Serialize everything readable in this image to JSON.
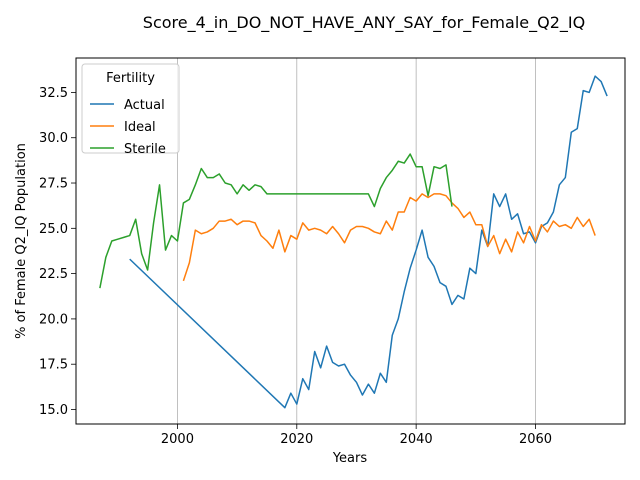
{
  "chart_data": {
    "type": "line",
    "title": "Score_4_in_DO_NOT_HAVE_ANY_SAY_for_Female_Q2_IQ",
    "xlabel": "Years",
    "ylabel": "% of Female Q2_IQ Population",
    "xlim": [
      1983,
      2075
    ],
    "ylim": [
      14.2,
      34.4
    ],
    "xticks": [
      2000,
      2020,
      2040,
      2060
    ],
    "yticks": [
      15.0,
      17.5,
      20.0,
      22.5,
      25.0,
      27.5,
      30.0,
      32.5
    ],
    "grid": "x-only",
    "legend": {
      "title": "Fertility",
      "position": "top-left"
    },
    "series": [
      {
        "name": "Actual",
        "color": "#1f77b4",
        "points": [
          [
            1992,
            23.3
          ],
          [
            2018,
            15.1
          ],
          [
            2019,
            15.9
          ],
          [
            2020,
            15.3
          ],
          [
            2021,
            16.7
          ],
          [
            2022,
            16.1
          ],
          [
            2023,
            18.2
          ],
          [
            2024,
            17.3
          ],
          [
            2025,
            18.5
          ],
          [
            2026,
            17.6
          ],
          [
            2027,
            17.4
          ],
          [
            2028,
            17.5
          ],
          [
            2029,
            16.9
          ],
          [
            2030,
            16.5
          ],
          [
            2031,
            15.8
          ],
          [
            2032,
            16.4
          ],
          [
            2033,
            15.9
          ],
          [
            2034,
            17.0
          ],
          [
            2035,
            16.5
          ],
          [
            2036,
            19.1
          ],
          [
            2037,
            20.0
          ],
          [
            2038,
            21.5
          ],
          [
            2039,
            22.8
          ],
          [
            2040,
            23.8
          ],
          [
            2041,
            24.9
          ],
          [
            2042,
            23.4
          ],
          [
            2043,
            22.9
          ],
          [
            2044,
            22.0
          ],
          [
            2045,
            21.8
          ],
          [
            2046,
            20.8
          ],
          [
            2047,
            21.3
          ],
          [
            2048,
            21.1
          ],
          [
            2049,
            22.8
          ],
          [
            2050,
            22.5
          ],
          [
            2051,
            24.9
          ],
          [
            2052,
            24.0
          ],
          [
            2053,
            26.9
          ],
          [
            2054,
            26.2
          ],
          [
            2055,
            26.9
          ],
          [
            2056,
            25.5
          ],
          [
            2057,
            25.8
          ],
          [
            2058,
            24.7
          ],
          [
            2059,
            24.8
          ],
          [
            2060,
            24.2
          ],
          [
            2061,
            25.1
          ],
          [
            2062,
            25.3
          ],
          [
            2063,
            25.9
          ],
          [
            2064,
            27.4
          ],
          [
            2065,
            27.8
          ],
          [
            2066,
            30.3
          ],
          [
            2067,
            30.5
          ],
          [
            2068,
            32.6
          ],
          [
            2069,
            32.5
          ],
          [
            2070,
            33.4
          ],
          [
            2071,
            33.1
          ],
          [
            2072,
            32.3
          ]
        ]
      },
      {
        "name": "Ideal",
        "color": "#ff7f0e",
        "points": [
          [
            2001,
            22.1
          ],
          [
            2002,
            23.1
          ],
          [
            2003,
            24.9
          ],
          [
            2004,
            24.7
          ],
          [
            2005,
            24.8
          ],
          [
            2006,
            25.0
          ],
          [
            2007,
            25.4
          ],
          [
            2008,
            25.4
          ],
          [
            2009,
            25.5
          ],
          [
            2010,
            25.2
          ],
          [
            2011,
            25.4
          ],
          [
            2012,
            25.4
          ],
          [
            2013,
            25.3
          ],
          [
            2014,
            24.6
          ],
          [
            2015,
            24.3
          ],
          [
            2016,
            23.9
          ],
          [
            2017,
            24.9
          ],
          [
            2018,
            23.7
          ],
          [
            2019,
            24.6
          ],
          [
            2020,
            24.4
          ],
          [
            2021,
            25.3
          ],
          [
            2022,
            24.9
          ],
          [
            2023,
            25.0
          ],
          [
            2024,
            24.9
          ],
          [
            2025,
            24.7
          ],
          [
            2026,
            25.1
          ],
          [
            2027,
            24.7
          ],
          [
            2028,
            24.2
          ],
          [
            2029,
            24.9
          ],
          [
            2030,
            25.1
          ],
          [
            2031,
            25.1
          ],
          [
            2032,
            25.0
          ],
          [
            2033,
            24.8
          ],
          [
            2034,
            24.7
          ],
          [
            2035,
            25.4
          ],
          [
            2036,
            24.9
          ],
          [
            2037,
            25.9
          ],
          [
            2038,
            25.9
          ],
          [
            2039,
            26.7
          ],
          [
            2040,
            26.5
          ],
          [
            2041,
            26.9
          ],
          [
            2042,
            26.7
          ],
          [
            2043,
            26.9
          ],
          [
            2044,
            26.9
          ],
          [
            2045,
            26.8
          ],
          [
            2046,
            26.4
          ],
          [
            2047,
            26.1
          ],
          [
            2048,
            25.6
          ],
          [
            2049,
            25.9
          ],
          [
            2050,
            25.2
          ],
          [
            2051,
            25.2
          ],
          [
            2052,
            24.0
          ],
          [
            2053,
            24.6
          ],
          [
            2054,
            23.6
          ],
          [
            2055,
            24.4
          ],
          [
            2056,
            23.7
          ],
          [
            2057,
            24.8
          ],
          [
            2058,
            24.2
          ],
          [
            2059,
            25.1
          ],
          [
            2060,
            24.3
          ],
          [
            2061,
            25.2
          ],
          [
            2062,
            24.8
          ],
          [
            2063,
            25.4
          ],
          [
            2064,
            25.1
          ],
          [
            2065,
            25.2
          ],
          [
            2066,
            25.0
          ],
          [
            2067,
            25.6
          ],
          [
            2068,
            25.1
          ],
          [
            2069,
            25.5
          ],
          [
            2070,
            24.6
          ]
        ]
      },
      {
        "name": "Sterile",
        "color": "#2ca02c",
        "points": [
          [
            1987,
            21.7
          ],
          [
            1988,
            23.4
          ],
          [
            1989,
            24.3
          ],
          [
            1990,
            24.4
          ],
          [
            1991,
            24.5
          ],
          [
            1992,
            24.6
          ],
          [
            1993,
            25.5
          ],
          [
            1994,
            23.6
          ],
          [
            1995,
            22.7
          ],
          [
            1996,
            25.3
          ],
          [
            1997,
            27.4
          ],
          [
            1998,
            23.8
          ],
          [
            1999,
            24.6
          ],
          [
            2000,
            24.3
          ],
          [
            2001,
            26.4
          ],
          [
            2002,
            26.6
          ],
          [
            2003,
            27.4
          ],
          [
            2004,
            28.3
          ],
          [
            2005,
            27.8
          ],
          [
            2006,
            27.8
          ],
          [
            2007,
            28.0
          ],
          [
            2008,
            27.5
          ],
          [
            2009,
            27.4
          ],
          [
            2010,
            26.9
          ],
          [
            2011,
            27.4
          ],
          [
            2012,
            27.1
          ],
          [
            2013,
            27.4
          ],
          [
            2014,
            27.3
          ],
          [
            2015,
            26.9
          ],
          [
            2016,
            26.9
          ],
          [
            2017,
            26.9
          ],
          [
            2018,
            26.9
          ],
          [
            2019,
            26.9
          ],
          [
            2020,
            26.9
          ],
          [
            2021,
            26.9
          ],
          [
            2022,
            26.9
          ],
          [
            2023,
            26.9
          ],
          [
            2024,
            26.9
          ],
          [
            2025,
            26.9
          ],
          [
            2026,
            26.9
          ],
          [
            2027,
            26.9
          ],
          [
            2028,
            26.9
          ],
          [
            2029,
            26.9
          ],
          [
            2030,
            26.9
          ],
          [
            2031,
            26.9
          ],
          [
            2032,
            26.9
          ],
          [
            2033,
            26.2
          ],
          [
            2034,
            27.2
          ],
          [
            2035,
            27.8
          ],
          [
            2036,
            28.2
          ],
          [
            2037,
            28.7
          ],
          [
            2038,
            28.6
          ],
          [
            2039,
            29.1
          ],
          [
            2040,
            28.4
          ],
          [
            2041,
            28.4
          ],
          [
            2042,
            26.8
          ],
          [
            2043,
            28.4
          ],
          [
            2044,
            28.3
          ],
          [
            2045,
            28.5
          ],
          [
            2046,
            26.2
          ]
        ]
      }
    ]
  }
}
